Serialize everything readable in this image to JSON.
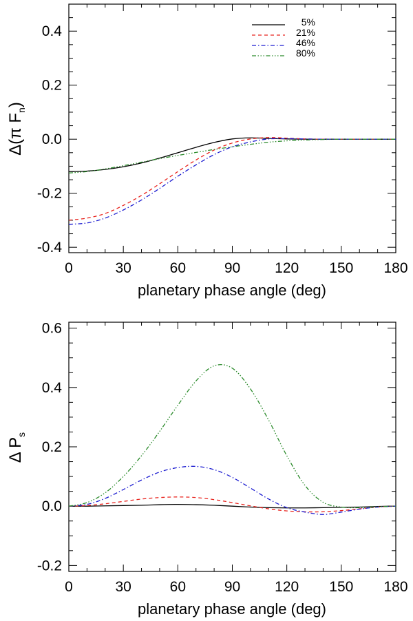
{
  "chart_data": [
    {
      "type": "line",
      "panel": "top",
      "xlabel": "planetary phase angle (deg)",
      "ylabel_main": "Δ(π F",
      "ylabel_sub": "n",
      "ylabel_close": ")",
      "xlim": [
        0,
        180
      ],
      "ylim": [
        -0.42,
        0.5
      ],
      "xticks": [
        0,
        30,
        60,
        90,
        120,
        150,
        180
      ],
      "xtick_labels": [
        "0",
        "30",
        "60",
        "90",
        "120",
        "150",
        "180"
      ],
      "yticks": [
        -0.4,
        -0.2,
        0.0,
        0.2,
        0.4
      ],
      "ytick_labels": [
        "-0.4",
        "-0.2",
        "0.0",
        "0.2",
        "0.4"
      ],
      "legend_position": "top-right",
      "x": [
        0,
        10,
        20,
        30,
        40,
        50,
        60,
        70,
        80,
        90,
        100,
        110,
        120,
        130,
        140,
        150,
        160,
        170,
        180
      ],
      "series": [
        {
          "name": "5%",
          "color": "#000000",
          "dash": "",
          "values": [
            -0.12,
            -0.118,
            -0.112,
            -0.102,
            -0.088,
            -0.07,
            -0.05,
            -0.03,
            -0.012,
            0.001,
            0.005,
            0.003,
            0.001,
            0.0,
            0.0,
            0.0,
            0.0,
            0.0,
            0.0
          ]
        },
        {
          "name": "21%",
          "color": "#e8221c",
          "dash": "5,4",
          "values": [
            -0.3,
            -0.292,
            -0.275,
            -0.245,
            -0.208,
            -0.165,
            -0.12,
            -0.077,
            -0.04,
            -0.014,
            0.001,
            0.006,
            0.004,
            0.001,
            0.0,
            0.0,
            0.0,
            0.0,
            0.0
          ]
        },
        {
          "name": "46%",
          "color": "#1a1ad0",
          "dash": "6,3,1.5,3",
          "values": [
            -0.315,
            -0.31,
            -0.292,
            -0.262,
            -0.225,
            -0.182,
            -0.137,
            -0.095,
            -0.057,
            -0.028,
            -0.01,
            0.001,
            0.002,
            0.001,
            0.0,
            0.0,
            0.0,
            0.0,
            0.0
          ]
        },
        {
          "name": "80%",
          "color": "#2a8a2a",
          "dash": "6,2.5,1.5,2.5,1.5,2.5,1.5,2.5",
          "values": [
            -0.125,
            -0.12,
            -0.11,
            -0.098,
            -0.085,
            -0.072,
            -0.06,
            -0.049,
            -0.038,
            -0.028,
            -0.019,
            -0.011,
            -0.006,
            -0.003,
            -0.001,
            0.0,
            0.0,
            0.0,
            0.0
          ]
        }
      ]
    },
    {
      "type": "line",
      "panel": "bottom",
      "xlabel": "planetary phase angle (deg)",
      "ylabel_main": "Δ P",
      "ylabel_sub": "s",
      "ylabel_close": "",
      "xlim": [
        0,
        180
      ],
      "ylim": [
        -0.22,
        0.62
      ],
      "xticks": [
        0,
        30,
        60,
        90,
        120,
        150,
        180
      ],
      "xtick_labels": [
        "0",
        "30",
        "60",
        "90",
        "120",
        "150",
        "180"
      ],
      "yticks": [
        -0.2,
        0.0,
        0.2,
        0.4,
        0.6
      ],
      "ytick_labels": [
        "-0.2",
        "0.0",
        "0.2",
        "0.4",
        "0.6"
      ],
      "x": [
        0,
        10,
        20,
        30,
        40,
        50,
        60,
        70,
        80,
        90,
        100,
        110,
        120,
        130,
        140,
        150,
        160,
        170,
        180
      ],
      "series": [
        {
          "name": "5%",
          "color": "#000000",
          "dash": "",
          "values": [
            0.0,
            0.0,
            0.001,
            0.002,
            0.003,
            0.005,
            0.006,
            0.005,
            0.003,
            0.0,
            -0.003,
            -0.005,
            -0.006,
            -0.006,
            -0.005,
            -0.004,
            -0.003,
            -0.001,
            0.0
          ]
        },
        {
          "name": "21%",
          "color": "#e8221c",
          "dash": "5,4",
          "values": [
            0.0,
            0.002,
            0.008,
            0.016,
            0.024,
            0.029,
            0.031,
            0.029,
            0.022,
            0.012,
            0.001,
            -0.009,
            -0.016,
            -0.019,
            -0.019,
            -0.015,
            -0.009,
            -0.003,
            0.0
          ]
        },
        {
          "name": "46%",
          "color": "#1a1ad0",
          "dash": "6,3,1.5,3",
          "values": [
            0.0,
            0.006,
            0.026,
            0.056,
            0.088,
            0.115,
            0.13,
            0.134,
            0.123,
            0.097,
            0.061,
            0.024,
            -0.005,
            -0.02,
            -0.028,
            -0.02,
            -0.01,
            -0.003,
            0.0
          ]
        },
        {
          "name": "80%",
          "color": "#2a8a2a",
          "dash": "6,2.5,1.5,2.5,1.5,2.5,1.5,2.5",
          "values": [
            0.0,
            0.012,
            0.045,
            0.1,
            0.17,
            0.252,
            0.34,
            0.422,
            0.473,
            0.465,
            0.395,
            0.29,
            0.17,
            0.07,
            0.013,
            -0.003,
            -0.005,
            -0.002,
            0.0
          ]
        }
      ]
    }
  ]
}
